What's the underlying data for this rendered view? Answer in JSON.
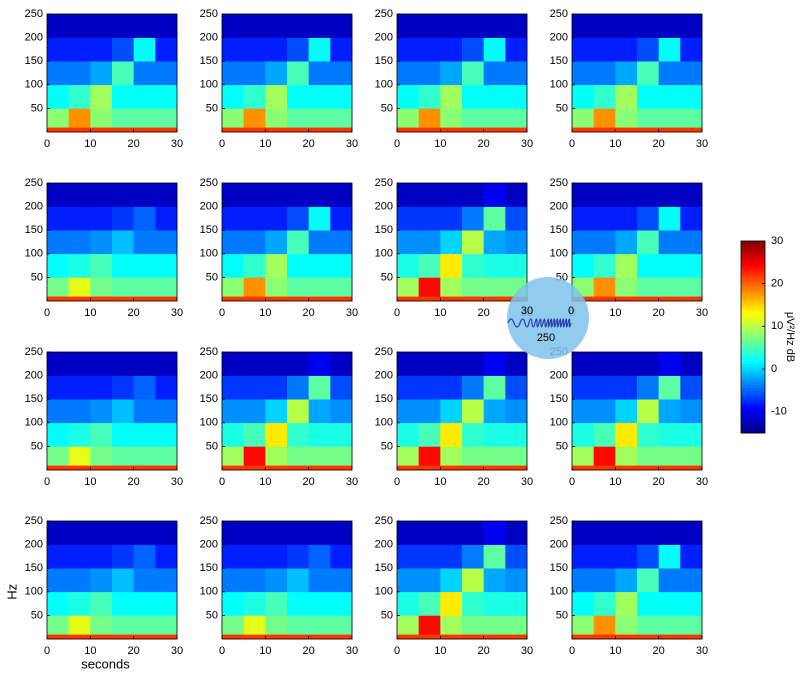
{
  "chart_data": [
    {
      "type": "heatmap",
      "x_bins": [
        0,
        5,
        10,
        15,
        20,
        25,
        30
      ],
      "y_bins": [
        0,
        10,
        50,
        100,
        150,
        200,
        250
      ],
      "values": [
        [
          22,
          22,
          22,
          22,
          22,
          22
        ],
        [
          8,
          18,
          8,
          6,
          6,
          6
        ],
        [
          2,
          4,
          9,
          2,
          2,
          2
        ],
        [
          -4,
          -4,
          -2,
          5,
          -4,
          -4
        ],
        [
          -8,
          -8,
          -8,
          -6,
          2,
          -8
        ],
        [
          -12,
          -12,
          -12,
          -12,
          -12,
          -12
        ]
      ],
      "xlim": [
        0,
        30
      ],
      "ylim": [
        0,
        250
      ],
      "xticks": [
        0,
        10,
        20,
        30
      ],
      "yticks": [
        50,
        100,
        150,
        200,
        250
      ]
    },
    {
      "type": "heatmap",
      "x_bins": [
        0,
        5,
        10,
        15,
        20,
        25,
        30
      ],
      "y_bins": [
        0,
        10,
        50,
        100,
        150,
        200,
        250
      ],
      "values": [
        [
          22,
          22,
          22,
          22,
          22,
          22
        ],
        [
          8,
          18,
          8,
          6,
          6,
          6
        ],
        [
          2,
          4,
          9,
          2,
          2,
          2
        ],
        [
          -4,
          -4,
          -2,
          5,
          -4,
          -4
        ],
        [
          -8,
          -8,
          -8,
          -6,
          2,
          -8
        ],
        [
          -12,
          -12,
          -12,
          -12,
          -12,
          -12
        ]
      ],
      "xlim": [
        0,
        30
      ],
      "ylim": [
        0,
        250
      ],
      "xticks": [
        0,
        10,
        20,
        30
      ],
      "yticks": [
        50,
        100,
        150,
        200,
        250
      ]
    },
    {
      "type": "heatmap",
      "x_bins": [
        0,
        5,
        10,
        15,
        20,
        25,
        30
      ],
      "y_bins": [
        0,
        10,
        50,
        100,
        150,
        200,
        250
      ],
      "values": [
        [
          22,
          22,
          22,
          22,
          22,
          22
        ],
        [
          8,
          18,
          8,
          6,
          6,
          6
        ],
        [
          2,
          4,
          9,
          2,
          2,
          2
        ],
        [
          -4,
          -4,
          -2,
          5,
          -4,
          -4
        ],
        [
          -8,
          -8,
          -8,
          -6,
          2,
          -8
        ],
        [
          -12,
          -12,
          -12,
          -12,
          -12,
          -12
        ]
      ],
      "xlim": [
        0,
        30
      ],
      "ylim": [
        0,
        250
      ],
      "xticks": [
        0,
        10,
        20,
        30
      ],
      "yticks": [
        50,
        100,
        150,
        200,
        250
      ]
    },
    {
      "type": "heatmap",
      "x_bins": [
        0,
        5,
        10,
        15,
        20,
        25,
        30
      ],
      "y_bins": [
        0,
        10,
        50,
        100,
        150,
        200,
        250
      ],
      "values": [
        [
          22,
          22,
          22,
          22,
          22,
          22
        ],
        [
          8,
          18,
          8,
          6,
          6,
          6
        ],
        [
          2,
          4,
          9,
          2,
          2,
          2
        ],
        [
          -4,
          -4,
          -2,
          5,
          -4,
          -4
        ],
        [
          -8,
          -8,
          -8,
          -6,
          2,
          -8
        ],
        [
          -12,
          -12,
          -12,
          -12,
          -12,
          -12
        ]
      ],
      "xlim": [
        0,
        30
      ],
      "ylim": [
        0,
        250
      ],
      "xticks": [
        0,
        10,
        20,
        30
      ],
      "yticks": [
        50,
        100,
        150,
        200,
        250
      ]
    },
    {
      "type": "heatmap",
      "x_bins": [
        0,
        5,
        10,
        15,
        20,
        25,
        30
      ],
      "y_bins": [
        0,
        10,
        50,
        100,
        150,
        200,
        250
      ],
      "values": [
        [
          22,
          22,
          22,
          22,
          22,
          22
        ],
        [
          7,
          12,
          7,
          6,
          6,
          6
        ],
        [
          2,
          3,
          5,
          2,
          2,
          2
        ],
        [
          -4,
          -4,
          -3,
          -1,
          -4,
          -4
        ],
        [
          -8,
          -8,
          -8,
          -7,
          -5,
          -8
        ],
        [
          -12,
          -12,
          -12,
          -12,
          -12,
          -12
        ]
      ],
      "xlim": [
        0,
        30
      ],
      "ylim": [
        0,
        250
      ],
      "xticks": [
        0,
        10,
        20,
        30
      ],
      "yticks": [
        50,
        100,
        150,
        200,
        250
      ]
    },
    {
      "type": "heatmap",
      "x_bins": [
        0,
        5,
        10,
        15,
        20,
        25,
        30
      ],
      "y_bins": [
        0,
        10,
        50,
        100,
        150,
        200,
        250
      ],
      "values": [
        [
          22,
          22,
          22,
          22,
          22,
          22
        ],
        [
          8,
          18,
          8,
          6,
          6,
          6
        ],
        [
          2,
          4,
          9,
          2,
          2,
          2
        ],
        [
          -4,
          -4,
          -2,
          5,
          -4,
          -4
        ],
        [
          -8,
          -8,
          -8,
          -6,
          2,
          -8
        ],
        [
          -12,
          -12,
          -12,
          -12,
          -12,
          -12
        ]
      ],
      "xlim": [
        0,
        30
      ],
      "ylim": [
        0,
        250
      ],
      "xticks": [
        0,
        10,
        20,
        30
      ],
      "yticks": [
        50,
        100,
        150,
        200,
        250
      ]
    },
    {
      "type": "heatmap",
      "x_bins": [
        0,
        5,
        10,
        15,
        20,
        25,
        30
      ],
      "y_bins": [
        0,
        10,
        50,
        100,
        150,
        200,
        250
      ],
      "values": [
        [
          22,
          22,
          22,
          22,
          22,
          22
        ],
        [
          9,
          24,
          9,
          7,
          7,
          7
        ],
        [
          3,
          5,
          14,
          4,
          3,
          3
        ],
        [
          -3,
          -3,
          0,
          10,
          -2,
          -3
        ],
        [
          -7,
          -7,
          -7,
          -4,
          6,
          -6
        ],
        [
          -12,
          -12,
          -12,
          -12,
          -10,
          -12
        ]
      ],
      "xlim": [
        0,
        30
      ],
      "ylim": [
        0,
        250
      ],
      "xticks": [
        0,
        10,
        20,
        30
      ],
      "yticks": [
        50,
        100,
        150,
        200,
        250
      ]
    },
    {
      "type": "heatmap",
      "x_bins": [
        0,
        5,
        10,
        15,
        20,
        25,
        30
      ],
      "y_bins": [
        0,
        10,
        50,
        100,
        150,
        200,
        250
      ],
      "values": [
        [
          22,
          22,
          22,
          22,
          22,
          22
        ],
        [
          8,
          18,
          8,
          6,
          6,
          6
        ],
        [
          2,
          4,
          9,
          2,
          2,
          2
        ],
        [
          -4,
          -4,
          -2,
          5,
          -4,
          -4
        ],
        [
          -8,
          -8,
          -8,
          -6,
          2,
          -8
        ],
        [
          -12,
          -12,
          -12,
          -12,
          -12,
          -12
        ]
      ],
      "xlim": [
        0,
        30
      ],
      "ylim": [
        0,
        250
      ],
      "xticks": [
        0,
        10,
        20,
        30
      ],
      "yticks": [
        50,
        100,
        150,
        200,
        250
      ]
    },
    {
      "type": "heatmap",
      "x_bins": [
        0,
        5,
        10,
        15,
        20,
        25,
        30
      ],
      "y_bins": [
        0,
        10,
        50,
        100,
        150,
        200,
        250
      ],
      "values": [
        [
          22,
          22,
          22,
          22,
          22,
          22
        ],
        [
          7,
          12,
          7,
          6,
          6,
          6
        ],
        [
          2,
          3,
          5,
          2,
          2,
          2
        ],
        [
          -4,
          -4,
          -3,
          -1,
          -4,
          -4
        ],
        [
          -8,
          -8,
          -8,
          -7,
          -5,
          -8
        ],
        [
          -12,
          -12,
          -12,
          -12,
          -12,
          -12
        ]
      ],
      "xlim": [
        0,
        30
      ],
      "ylim": [
        0,
        250
      ],
      "xticks": [
        0,
        10,
        20,
        30
      ],
      "yticks": [
        50,
        100,
        150,
        200,
        250
      ]
    },
    {
      "type": "heatmap",
      "x_bins": [
        0,
        5,
        10,
        15,
        20,
        25,
        30
      ],
      "y_bins": [
        0,
        10,
        50,
        100,
        150,
        200,
        250
      ],
      "values": [
        [
          22,
          22,
          22,
          22,
          22,
          22
        ],
        [
          9,
          24,
          9,
          7,
          7,
          7
        ],
        [
          3,
          5,
          14,
          4,
          3,
          3
        ],
        [
          -3,
          -3,
          0,
          10,
          -2,
          -3
        ],
        [
          -7,
          -7,
          -7,
          -4,
          6,
          -6
        ],
        [
          -12,
          -12,
          -12,
          -12,
          -10,
          -12
        ]
      ],
      "xlim": [
        0,
        30
      ],
      "ylim": [
        0,
        250
      ],
      "xticks": [
        0,
        10,
        20,
        30
      ],
      "yticks": [
        50,
        100,
        150,
        200,
        250
      ]
    },
    {
      "type": "heatmap",
      "x_bins": [
        0,
        5,
        10,
        15,
        20,
        25,
        30
      ],
      "y_bins": [
        0,
        10,
        50,
        100,
        150,
        200,
        250
      ],
      "values": [
        [
          22,
          22,
          22,
          22,
          22,
          22
        ],
        [
          9,
          24,
          9,
          7,
          7,
          7
        ],
        [
          3,
          5,
          14,
          4,
          3,
          3
        ],
        [
          -3,
          -3,
          0,
          10,
          -2,
          -3
        ],
        [
          -7,
          -7,
          -7,
          -4,
          6,
          -6
        ],
        [
          -12,
          -12,
          -12,
          -12,
          -10,
          -12
        ]
      ],
      "xlim": [
        0,
        30
      ],
      "ylim": [
        0,
        250
      ],
      "xticks": [
        0,
        10,
        20,
        30
      ],
      "yticks": [
        50,
        100,
        150,
        200,
        250
      ]
    },
    {
      "type": "heatmap",
      "x_bins": [
        0,
        5,
        10,
        15,
        20,
        25,
        30
      ],
      "y_bins": [
        0,
        10,
        50,
        100,
        150,
        200,
        250
      ],
      "values": [
        [
          22,
          22,
          22,
          22,
          22,
          22
        ],
        [
          9,
          24,
          9,
          7,
          7,
          7
        ],
        [
          3,
          5,
          14,
          4,
          3,
          3
        ],
        [
          -3,
          -3,
          0,
          10,
          -2,
          -3
        ],
        [
          -7,
          -7,
          -7,
          -4,
          6,
          -6
        ],
        [
          -12,
          -12,
          -12,
          -12,
          -10,
          -12
        ]
      ],
      "xlim": [
        0,
        30
      ],
      "ylim": [
        0,
        250
      ],
      "xticks": [
        0,
        10,
        20,
        30
      ],
      "yticks": [
        50,
        100,
        150,
        200,
        250
      ]
    },
    {
      "type": "heatmap",
      "x_bins": [
        0,
        5,
        10,
        15,
        20,
        25,
        30
      ],
      "y_bins": [
        0,
        10,
        50,
        100,
        150,
        200,
        250
      ],
      "values": [
        [
          22,
          22,
          22,
          22,
          22,
          22
        ],
        [
          7,
          12,
          7,
          6,
          6,
          6
        ],
        [
          2,
          3,
          5,
          2,
          2,
          2
        ],
        [
          -4,
          -4,
          -3,
          -1,
          -4,
          -4
        ],
        [
          -8,
          -8,
          -8,
          -7,
          -5,
          -8
        ],
        [
          -12,
          -12,
          -12,
          -12,
          -12,
          -12
        ]
      ],
      "xlim": [
        0,
        30
      ],
      "ylim": [
        0,
        250
      ],
      "xticks": [
        0,
        10,
        20,
        30
      ],
      "yticks": [
        50,
        100,
        150,
        200,
        250
      ],
      "xlabel": "seconds",
      "ylabel": "Hz"
    },
    {
      "type": "heatmap",
      "x_bins": [
        0,
        5,
        10,
        15,
        20,
        25,
        30
      ],
      "y_bins": [
        0,
        10,
        50,
        100,
        150,
        200,
        250
      ],
      "values": [
        [
          22,
          22,
          22,
          22,
          22,
          22
        ],
        [
          7,
          12,
          7,
          6,
          6,
          6
        ],
        [
          2,
          3,
          5,
          2,
          2,
          2
        ],
        [
          -4,
          -4,
          -3,
          -1,
          -4,
          -4
        ],
        [
          -8,
          -8,
          -8,
          -7,
          -5,
          -8
        ],
        [
          -12,
          -12,
          -12,
          -12,
          -12,
          -12
        ]
      ],
      "xlim": [
        0,
        30
      ],
      "ylim": [
        0,
        250
      ],
      "xticks": [
        0,
        10,
        20,
        30
      ],
      "yticks": [
        50,
        100,
        150,
        200,
        250
      ]
    },
    {
      "type": "heatmap",
      "x_bins": [
        0,
        5,
        10,
        15,
        20,
        25,
        30
      ],
      "y_bins": [
        0,
        10,
        50,
        100,
        150,
        200,
        250
      ],
      "values": [
        [
          22,
          22,
          22,
          22,
          22,
          22
        ],
        [
          9,
          24,
          9,
          7,
          7,
          7
        ],
        [
          3,
          5,
          14,
          4,
          3,
          3
        ],
        [
          -3,
          -3,
          0,
          10,
          -2,
          -3
        ],
        [
          -7,
          -7,
          -7,
          -4,
          6,
          -6
        ],
        [
          -12,
          -12,
          -12,
          -12,
          -10,
          -12
        ]
      ],
      "xlim": [
        0,
        30
      ],
      "ylim": [
        0,
        250
      ],
      "xticks": [
        0,
        10,
        20,
        30
      ],
      "yticks": [
        50,
        100,
        150,
        200,
        250
      ]
    },
    {
      "type": "heatmap",
      "x_bins": [
        0,
        5,
        10,
        15,
        20,
        25,
        30
      ],
      "y_bins": [
        0,
        10,
        50,
        100,
        150,
        200,
        250
      ],
      "values": [
        [
          22,
          22,
          22,
          22,
          22,
          22
        ],
        [
          8,
          18,
          8,
          6,
          6,
          6
        ],
        [
          2,
          4,
          9,
          2,
          2,
          2
        ],
        [
          -4,
          -4,
          -2,
          5,
          -4,
          -4
        ],
        [
          -8,
          -8,
          -8,
          -6,
          2,
          -8
        ],
        [
          -12,
          -12,
          -12,
          -12,
          -12,
          -12
        ]
      ],
      "xlim": [
        0,
        30
      ],
      "ylim": [
        0,
        250
      ],
      "xticks": [
        0,
        10,
        20,
        30
      ],
      "yticks": [
        50,
        100,
        150,
        200,
        250
      ]
    }
  ],
  "colorbar": {
    "clim": [
      -15,
      30
    ],
    "ticks": [
      -10,
      0,
      10,
      20,
      30
    ],
    "label": "μV²/Hz dB"
  },
  "overlay": {
    "labels": [
      "30",
      "0",
      "250"
    ]
  }
}
